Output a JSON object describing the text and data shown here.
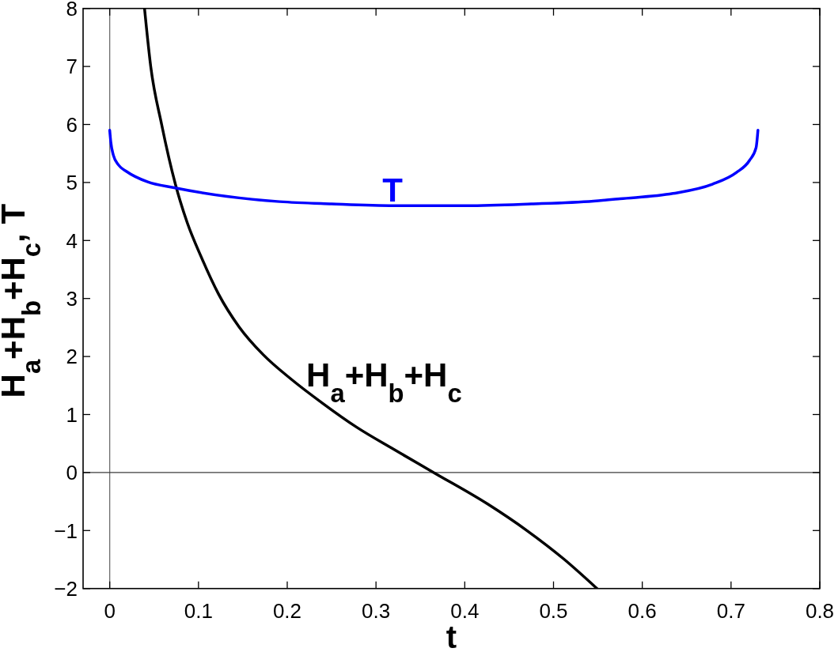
{
  "chart_data": {
    "type": "line",
    "xlabel": "t",
    "ylabel": "H$_{a}$+H$_{b}$+H$_{c}$, T",
    "xlim": [
      -0.03,
      0.8
    ],
    "xticks": [
      0,
      0.1,
      0.2,
      0.3,
      0.4,
      0.5,
      0.6,
      0.7,
      0.8
    ],
    "ylim": [
      -2,
      8
    ],
    "yticks": [
      {
        "value": -2,
        "label": "−2"
      },
      {
        "value": -1,
        "label": "−1"
      },
      0,
      1,
      2,
      3,
      4,
      5,
      6,
      7,
      8
    ],
    "series": [
      {
        "name": "H$_{a}$+H$_{b}$+H$_{c}$",
        "color": "#000000",
        "x": [
          0.0392,
          0.0462,
          0.0585,
          0.074,
          0.0875,
          0.103,
          0.1225,
          0.1458,
          0.173,
          0.2044,
          0.2393,
          0.2783,
          0.32,
          0.365,
          0.4255,
          0.47,
          0.5115,
          0.549
        ],
        "values": [
          8,
          7,
          6,
          4.97,
          4.3,
          3.72,
          3.08,
          2.51,
          2.03,
          1.61,
          1.2,
          0.78,
          0.4,
          0,
          -0.54,
          -1.0,
          -1.49,
          -2
        ]
      },
      {
        "name": "T",
        "color": "#0000ff",
        "x": [
          0,
          0.0012,
          0.0041,
          0.01,
          0.019,
          0.0428,
          0.0725,
          0.132,
          0.1914,
          0.25,
          0.32,
          0.365,
          0.4024,
          0.475,
          0.5451,
          0.575,
          0.6345,
          0.679,
          0.7059,
          0.7208,
          0.7282,
          0.7303
        ],
        "values": [
          5.9,
          5.7,
          5.47,
          5.3,
          5.19,
          5.01,
          4.91,
          4.76,
          4.67,
          4.63,
          4.6,
          4.6,
          4.6,
          4.63,
          4.68,
          4.72,
          4.81,
          4.97,
          5.17,
          5.38,
          5.6,
          5.9
        ]
      }
    ],
    "ref_lines": [
      {
        "axis": "x",
        "value": 0,
        "color": "#6e6e6e"
      },
      {
        "axis": "y",
        "value": 0,
        "color": "#3c3c3c"
      }
    ]
  }
}
